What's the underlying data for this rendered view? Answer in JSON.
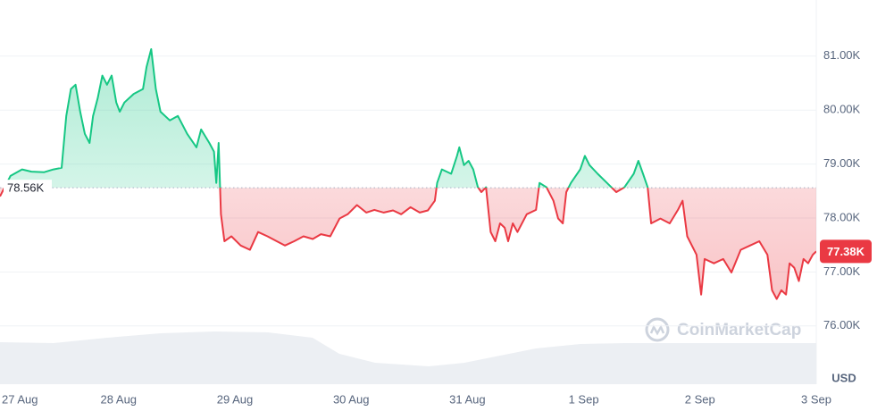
{
  "chart_data": {
    "type": "line",
    "x": [
      -0.02,
      0.07,
      0.17,
      0.25,
      0.36,
      0.44,
      0.51,
      0.55,
      0.59,
      0.63,
      0.67,
      0.71,
      0.75,
      0.78,
      0.82,
      0.86,
      0.9,
      0.94,
      0.98,
      1.01,
      1.05,
      1.13,
      1.21,
      1.24,
      1.28,
      1.32,
      1.36,
      1.44,
      1.51,
      1.59,
      1.67,
      1.71,
      1.78,
      1.82,
      1.84,
      1.86,
      1.88,
      1.91,
      1.97,
      2.05,
      2.13,
      2.2,
      2.28,
      2.36,
      2.43,
      2.51,
      2.59,
      2.67,
      2.74,
      2.82,
      2.9,
      2.97,
      3.05,
      3.13,
      3.2,
      3.28,
      3.36,
      3.43,
      3.51,
      3.59,
      3.66,
      3.72,
      3.74,
      3.78,
      3.86,
      3.91,
      3.93,
      3.97,
      4.01,
      4.05,
      4.09,
      4.12,
      4.16,
      4.2,
      4.24,
      4.28,
      4.32,
      4.35,
      4.39,
      4.43,
      4.51,
      4.59,
      4.62,
      4.68,
      4.74,
      4.78,
      4.82,
      4.85,
      4.89,
      4.97,
      5.01,
      5.05,
      5.12,
      5.2,
      5.28,
      5.35,
      5.43,
      5.47,
      5.51,
      5.55,
      5.58,
      5.66,
      5.74,
      5.81,
      5.85,
      5.89,
      5.97,
      6.01,
      6.04,
      6.12,
      6.2,
      6.27,
      6.35,
      6.43,
      6.51,
      6.58,
      6.62,
      6.66,
      6.7,
      6.74,
      6.77,
      6.81,
      6.85,
      6.89,
      6.93,
      6.97,
      7.0
    ],
    "values": [
      78400,
      78780,
      78900,
      78860,
      78850,
      78900,
      78930,
      79890,
      80390,
      80470,
      79970,
      79560,
      79390,
      79890,
      80220,
      80640,
      80470,
      80640,
      80140,
      79970,
      80140,
      80300,
      80390,
      80800,
      81130,
      80390,
      79970,
      79810,
      79890,
      79560,
      79310,
      79640,
      79390,
      79230,
      78650,
      79390,
      78070,
      77570,
      77660,
      77490,
      77410,
      77740,
      77660,
      77570,
      77490,
      77570,
      77660,
      77610,
      77700,
      77660,
      77990,
      78070,
      78240,
      78100,
      78150,
      78100,
      78140,
      78070,
      78200,
      78100,
      78140,
      78320,
      78650,
      78900,
      78820,
      79150,
      79310,
      78980,
      79060,
      78900,
      78570,
      78480,
      78570,
      77740,
      77570,
      77900,
      77820,
      77570,
      77900,
      77740,
      78070,
      78150,
      78650,
      78570,
      78320,
      77990,
      77900,
      78480,
      78650,
      78900,
      79150,
      78980,
      78820,
      78650,
      78480,
      78570,
      78820,
      79060,
      78820,
      78570,
      77900,
      77990,
      77900,
      78150,
      78320,
      77660,
      77320,
      76580,
      77240,
      77160,
      77240,
      76990,
      77410,
      77490,
      77570,
      77320,
      76660,
      76500,
      76660,
      76580,
      77160,
      77080,
      76830,
      77240,
      77160,
      77320,
      77380
    ],
    "baseline": {
      "value": 78560,
      "label": "78.56K"
    },
    "current_price": {
      "value": 77380,
      "label": "77.38K"
    },
    "up_color": "#16c784",
    "down_color": "#ea3943",
    "xlim": [
      -0.02,
      7.0
    ],
    "ylim": [
      74920,
      82040
    ],
    "xticks": [
      {
        "value": 0,
        "label": "27 Aug"
      },
      {
        "value": 1,
        "label": "28 Aug"
      },
      {
        "value": 2,
        "label": "29 Aug"
      },
      {
        "value": 3,
        "label": "30 Aug"
      },
      {
        "value": 4,
        "label": "31 Aug"
      },
      {
        "value": 5,
        "label": "1 Sep"
      },
      {
        "value": 6,
        "label": "2 Sep"
      },
      {
        "value": 7,
        "label": "3 Sep"
      }
    ],
    "yticks": [
      {
        "value": 76000,
        "label": "76.00K"
      },
      {
        "value": 77000,
        "label": "77.00K"
      },
      {
        "value": 78000,
        "label": "78.00K"
      },
      {
        "value": 79000,
        "label": "79.00K"
      },
      {
        "value": 80000,
        "label": "80.00K"
      },
      {
        "value": 81000,
        "label": "81.00K"
      }
    ],
    "grid": true,
    "currency": "USD",
    "watermark": "CoinMarketCap"
  }
}
